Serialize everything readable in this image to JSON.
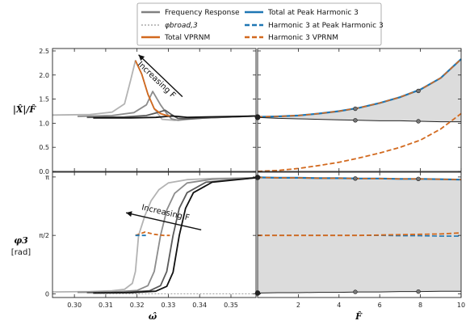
{
  "legend": {
    "entries": [
      {
        "label": "Frequency Response",
        "color": "#808080",
        "style": "solid"
      },
      {
        "label": "φbroad,3",
        "color": "#999999",
        "style": "dotted"
      },
      {
        "label": "Total VPRNM",
        "color": "#d2691e",
        "style": "solid"
      },
      {
        "label": "Total at Peak Harmonic 3",
        "color": "#1f77b4",
        "style": "solid"
      },
      {
        "label": "Harmonic 3 at Peak Harmonic 3",
        "color": "#1f77b4",
        "style": "dashed"
      },
      {
        "label": "Harmonic 3 VPRNM",
        "color": "#d2691e",
        "style": "dashed"
      }
    ]
  },
  "labels": {
    "y_top": "|X̂|/F̂",
    "y_bottom": "φ3",
    "y_bottom_unit": "[rad]",
    "x_left": "ω̂",
    "x_right": "F̂",
    "anno_top": "Increasing F",
    "anno_bottom": "Increasing F"
  },
  "chart_data": [
    {
      "type": "line",
      "panel": "top-left",
      "xlim": [
        0.293,
        0.358
      ],
      "ylim": [
        0.0,
        2.55
      ],
      "xticks": [
        0.3,
        0.31,
        0.32,
        0.33,
        0.34,
        0.35
      ],
      "xticklabels": [],
      "yticks": [
        0.0,
        0.5,
        1.0,
        1.5,
        2.0,
        2.5
      ],
      "yticklabels": [
        "0.0",
        "0.5",
        "1.0",
        "1.5",
        "2.0",
        "2.5"
      ],
      "series": [
        {
          "color": "#b3b3b3",
          "x": [
            0.293,
            0.305,
            0.312,
            0.316,
            0.318,
            0.3195,
            0.3215,
            0.3235,
            0.3255,
            0.328,
            0.332,
            0.338,
            0.358
          ],
          "y": [
            1.17,
            1.18,
            1.23,
            1.4,
            1.9,
            2.3,
            2.02,
            1.6,
            1.3,
            1.08,
            1.06,
            1.1,
            1.15
          ]
        },
        {
          "color": "#8c8c8c",
          "x": [
            0.301,
            0.312,
            0.319,
            0.323,
            0.325,
            0.3275,
            0.3295,
            0.331,
            0.333,
            0.336,
            0.342,
            0.358
          ],
          "y": [
            1.14,
            1.16,
            1.22,
            1.38,
            1.66,
            1.38,
            1.2,
            1.09,
            1.06,
            1.08,
            1.11,
            1.15
          ]
        },
        {
          "color": "#5a5a5a",
          "x": [
            0.304,
            0.316,
            0.323,
            0.327,
            0.329,
            0.331,
            0.333,
            0.336,
            0.342,
            0.358
          ],
          "y": [
            1.12,
            1.13,
            1.16,
            1.23,
            1.27,
            1.18,
            1.1,
            1.09,
            1.11,
            1.15
          ]
        },
        {
          "color": "#111111",
          "x": [
            0.306,
            0.318,
            0.326,
            0.331,
            0.333,
            0.336,
            0.342,
            0.358
          ],
          "y": [
            1.11,
            1.11,
            1.12,
            1.15,
            1.14,
            1.12,
            1.13,
            1.15
          ]
        },
        {
          "color": "#d2691e",
          "x": [
            0.3195,
            0.3215,
            0.3235,
            0.3255,
            0.3275,
            0.3295,
            0.3305
          ],
          "y": [
            2.3,
            2.02,
            1.6,
            1.3,
            1.2,
            1.16,
            1.15
          ]
        }
      ],
      "annotation": {
        "text": "Increasing F",
        "from": [
          0.3345,
          1.55
        ],
        "to": [
          0.3205,
          2.42
        ]
      }
    },
    {
      "type": "area",
      "panel": "top-right",
      "xlim": [
        0.0,
        10.0
      ],
      "ylim": [
        0.0,
        2.55
      ],
      "xticks": [
        2,
        4,
        6,
        8,
        10
      ],
      "xticklabels": [],
      "yticks": [
        0.0,
        0.5,
        1.0,
        1.5,
        2.0,
        2.5
      ],
      "yticklabels": [],
      "x": [
        0,
        1,
        2,
        3,
        4,
        5,
        6,
        7,
        8,
        9,
        10
      ],
      "upper": [
        1.13,
        1.14,
        1.16,
        1.2,
        1.25,
        1.32,
        1.42,
        1.54,
        1.7,
        1.94,
        2.33
      ],
      "lower": [
        1.12,
        1.1,
        1.09,
        1.08,
        1.07,
        1.06,
        1.05,
        1.05,
        1.04,
        1.03,
        1.03
      ],
      "harmonic": [
        0.0,
        0.02,
        0.06,
        0.12,
        0.19,
        0.28,
        0.38,
        0.5,
        0.65,
        0.88,
        1.2
      ],
      "markers_x": [
        0.0,
        4.8,
        7.9
      ],
      "marker_y_upper": [
        1.13,
        1.3,
        1.67
      ],
      "marker_y_lower": [
        1.12,
        1.06,
        1.04
      ]
    },
    {
      "type": "line",
      "panel": "bottom-left",
      "xlim": [
        0.293,
        0.358
      ],
      "ylim": [
        -0.1,
        3.27
      ],
      "xticks": [
        0.3,
        0.31,
        0.32,
        0.33,
        0.34,
        0.35
      ],
      "xticklabels": [
        "0.30",
        "0.31",
        "0.32",
        "0.33",
        "0.34",
        "0.35"
      ],
      "yticks": [
        0,
        1.5708,
        3.1416
      ],
      "yticklabels": [
        "0",
        "π/2",
        "π"
      ],
      "series": [
        {
          "color": "#b3b3b3",
          "x": [
            0.293,
            0.305,
            0.312,
            0.316,
            0.3185,
            0.3195,
            0.3205,
            0.3225,
            0.3245,
            0.327,
            0.33,
            0.336,
            0.344,
            0.358
          ],
          "y": [
            0.05,
            0.06,
            0.08,
            0.12,
            0.28,
            0.6,
            1.57,
            2.1,
            2.5,
            2.8,
            2.98,
            3.07,
            3.1,
            3.12
          ]
        },
        {
          "color": "#8c8c8c",
          "x": [
            0.301,
            0.312,
            0.32,
            0.3235,
            0.3255,
            0.3275,
            0.3295,
            0.332,
            0.336,
            0.344,
            0.358
          ],
          "y": [
            0.04,
            0.05,
            0.09,
            0.22,
            0.6,
            1.57,
            2.25,
            2.7,
            2.98,
            3.08,
            3.12
          ]
        },
        {
          "color": "#5a5a5a",
          "x": [
            0.304,
            0.316,
            0.324,
            0.3275,
            0.3295,
            0.3315,
            0.3335,
            0.336,
            0.342,
            0.358
          ],
          "y": [
            0.03,
            0.04,
            0.08,
            0.22,
            0.6,
            1.57,
            2.3,
            2.72,
            3.0,
            3.12
          ]
        },
        {
          "color": "#111111",
          "x": [
            0.306,
            0.318,
            0.326,
            0.3295,
            0.3315,
            0.3335,
            0.3355,
            0.338,
            0.344,
            0.358
          ],
          "y": [
            0.02,
            0.03,
            0.07,
            0.2,
            0.58,
            1.57,
            2.3,
            2.72,
            3.0,
            3.12
          ]
        }
      ],
      "broad_curve": {
        "color": "#999999",
        "x": [
          0.306,
          0.358
        ],
        "y": [
          0.0,
          0.0
        ]
      },
      "vprnm_total": {
        "color": "#d2691e",
        "x": [
          0.3195,
          0.3225,
          0.3255,
          0.3285,
          0.3305
        ],
        "y": [
          1.57,
          1.66,
          1.6,
          1.57,
          1.57
        ]
      },
      "harmonic_peak": {
        "color": "#1f77b4",
        "x": [
          0.3195,
          0.323
        ],
        "y": [
          1.57,
          1.57
        ]
      },
      "annotation": {
        "text": "Increasing F",
        "from": [
          0.3405,
          1.72
        ],
        "to": [
          0.3165,
          2.18
        ]
      }
    },
    {
      "type": "area",
      "panel": "bottom-right",
      "xlim": [
        0.0,
        10.0
      ],
      "ylim": [
        -0.1,
        3.27
      ],
      "xticks": [
        2,
        4,
        6,
        8,
        10
      ],
      "xticklabels": [
        "2",
        "4",
        "6",
        "8",
        "10"
      ],
      "yticks": [
        0,
        1.5708,
        3.1416
      ],
      "yticklabels": [],
      "x": [
        0,
        1,
        2,
        3,
        4,
        5,
        6,
        7,
        8,
        9,
        10
      ],
      "upper": [
        3.13,
        3.12,
        3.12,
        3.11,
        3.11,
        3.1,
        3.1,
        3.09,
        3.09,
        3.08,
        3.07
      ],
      "lower": [
        0.02,
        0.03,
        0.03,
        0.04,
        0.04,
        0.05,
        0.05,
        0.06,
        0.06,
        0.07,
        0.07
      ],
      "harmonic": [
        1.57,
        1.57,
        1.57,
        1.57,
        1.57,
        1.57,
        1.58,
        1.59,
        1.6,
        1.61,
        1.64
      ],
      "harmonic_peak": [
        1.57,
        1.57,
        1.57,
        1.57,
        1.57,
        1.57,
        1.57,
        1.56,
        1.56,
        1.55,
        1.55
      ],
      "markers_x": [
        0.0,
        4.8,
        7.9
      ],
      "marker_y_upper": [
        3.13,
        3.1,
        3.09
      ],
      "marker_y_lower": [
        0.02,
        0.05,
        0.06
      ]
    }
  ]
}
